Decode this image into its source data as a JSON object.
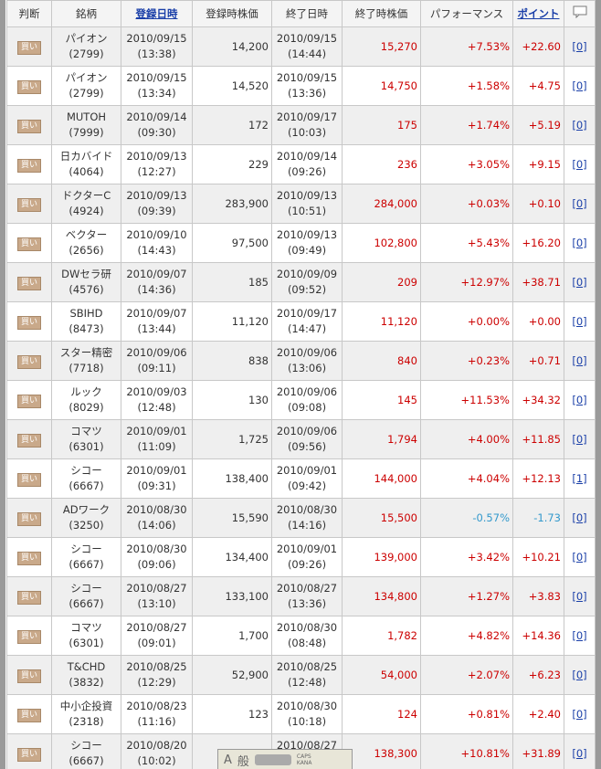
{
  "header": {
    "judge": "判断",
    "name": "銘柄",
    "reg_date": "登録日時",
    "reg_price": "登録時株価",
    "end_date": "終了日時",
    "end_price": "終了時株価",
    "performance": "パフォーマンス",
    "points": "ポイント"
  },
  "rows": [
    {
      "judge": "買い",
      "name": "パイオン",
      "code": "(2799)",
      "reg_date": "2010/09/15",
      "reg_time": "(13:38)",
      "reg_price": "14,200",
      "end_date": "2010/09/15",
      "end_time": "(14:44)",
      "end_price": "15,270",
      "performance": "+7.53%",
      "points": "+22.60",
      "comments": "[0]"
    },
    {
      "judge": "買い",
      "name": "パイオン",
      "code": "(2799)",
      "reg_date": "2010/09/15",
      "reg_time": "(13:34)",
      "reg_price": "14,520",
      "end_date": "2010/09/15",
      "end_time": "(13:36)",
      "end_price": "14,750",
      "performance": "+1.58%",
      "points": "+4.75",
      "comments": "[0]"
    },
    {
      "judge": "買い",
      "name": "MUTOH",
      "code": "(7999)",
      "reg_date": "2010/09/14",
      "reg_time": "(09:30)",
      "reg_price": "172",
      "end_date": "2010/09/17",
      "end_time": "(10:03)",
      "end_price": "175",
      "performance": "+1.74%",
      "points": "+5.19",
      "comments": "[0]"
    },
    {
      "judge": "買い",
      "name": "日カバイド",
      "code": "(4064)",
      "reg_date": "2010/09/13",
      "reg_time": "(12:27)",
      "reg_price": "229",
      "end_date": "2010/09/14",
      "end_time": "(09:26)",
      "end_price": "236",
      "performance": "+3.05%",
      "points": "+9.15",
      "comments": "[0]"
    },
    {
      "judge": "買い",
      "name": "ドクターC",
      "code": "(4924)",
      "reg_date": "2010/09/13",
      "reg_time": "(09:39)",
      "reg_price": "283,900",
      "end_date": "2010/09/13",
      "end_time": "(10:51)",
      "end_price": "284,000",
      "performance": "+0.03%",
      "points": "+0.10",
      "comments": "[0]"
    },
    {
      "judge": "買い",
      "name": "ベクター",
      "code": "(2656)",
      "reg_date": "2010/09/10",
      "reg_time": "(14:43)",
      "reg_price": "97,500",
      "end_date": "2010/09/13",
      "end_time": "(09:49)",
      "end_price": "102,800",
      "performance": "+5.43%",
      "points": "+16.20",
      "comments": "[0]"
    },
    {
      "judge": "買い",
      "name": "DWセラ研",
      "code": "(4576)",
      "reg_date": "2010/09/07",
      "reg_time": "(14:36)",
      "reg_price": "185",
      "end_date": "2010/09/09",
      "end_time": "(09:52)",
      "end_price": "209",
      "performance": "+12.97%",
      "points": "+38.71",
      "comments": "[0]"
    },
    {
      "judge": "買い",
      "name": "SBIHD",
      "code": "(8473)",
      "reg_date": "2010/09/07",
      "reg_time": "(13:44)",
      "reg_price": "11,120",
      "end_date": "2010/09/17",
      "end_time": "(14:47)",
      "end_price": "11,120",
      "performance": "+0.00%",
      "points": "+0.00",
      "comments": "[0]"
    },
    {
      "judge": "買い",
      "name": "スター精密",
      "code": "(7718)",
      "reg_date": "2010/09/06",
      "reg_time": "(09:11)",
      "reg_price": "838",
      "end_date": "2010/09/06",
      "end_time": "(13:06)",
      "end_price": "840",
      "performance": "+0.23%",
      "points": "+0.71",
      "comments": "[0]"
    },
    {
      "judge": "買い",
      "name": "ルック",
      "code": "(8029)",
      "reg_date": "2010/09/03",
      "reg_time": "(12:48)",
      "reg_price": "130",
      "end_date": "2010/09/06",
      "end_time": "(09:08)",
      "end_price": "145",
      "performance": "+11.53%",
      "points": "+34.32",
      "comments": "[0]"
    },
    {
      "judge": "買い",
      "name": "コマツ",
      "code": "(6301)",
      "reg_date": "2010/09/01",
      "reg_time": "(11:09)",
      "reg_price": "1,725",
      "end_date": "2010/09/06",
      "end_time": "(09:56)",
      "end_price": "1,794",
      "performance": "+4.00%",
      "points": "+11.85",
      "comments": "[0]"
    },
    {
      "judge": "買い",
      "name": "シコー",
      "code": "(6667)",
      "reg_date": "2010/09/01",
      "reg_time": "(09:31)",
      "reg_price": "138,400",
      "end_date": "2010/09/01",
      "end_time": "(09:42)",
      "end_price": "144,000",
      "performance": "+4.04%",
      "points": "+12.13",
      "comments": "[1]"
    },
    {
      "judge": "買い",
      "name": "ADワーク",
      "code": "(3250)",
      "reg_date": "2010/08/30",
      "reg_time": "(14:06)",
      "reg_price": "15,590",
      "end_date": "2010/08/30",
      "end_time": "(14:16)",
      "end_price": "15,500",
      "performance": "-0.57%",
      "points": "-1.73",
      "comments": "[0]"
    },
    {
      "judge": "買い",
      "name": "シコー",
      "code": "(6667)",
      "reg_date": "2010/08/30",
      "reg_time": "(09:06)",
      "reg_price": "134,400",
      "end_date": "2010/09/01",
      "end_time": "(09:26)",
      "end_price": "139,000",
      "performance": "+3.42%",
      "points": "+10.21",
      "comments": "[0]"
    },
    {
      "judge": "買い",
      "name": "シコー",
      "code": "(6667)",
      "reg_date": "2010/08/27",
      "reg_time": "(13:10)",
      "reg_price": "133,100",
      "end_date": "2010/08/27",
      "end_time": "(13:36)",
      "end_price": "134,800",
      "performance": "+1.27%",
      "points": "+3.83",
      "comments": "[0]"
    },
    {
      "judge": "買い",
      "name": "コマツ",
      "code": "(6301)",
      "reg_date": "2010/08/27",
      "reg_time": "(09:01)",
      "reg_price": "1,700",
      "end_date": "2010/08/30",
      "end_time": "(08:48)",
      "end_price": "1,782",
      "performance": "+4.82%",
      "points": "+14.36",
      "comments": "[0]"
    },
    {
      "judge": "買い",
      "name": "T&CHD",
      "code": "(3832)",
      "reg_date": "2010/08/25",
      "reg_time": "(12:29)",
      "reg_price": "52,900",
      "end_date": "2010/08/25",
      "end_time": "(12:48)",
      "end_price": "54,000",
      "performance": "+2.07%",
      "points": "+6.23",
      "comments": "[0]"
    },
    {
      "judge": "買い",
      "name": "中小企投資",
      "code": "(2318)",
      "reg_date": "2010/08/23",
      "reg_time": "(11:16)",
      "reg_price": "123",
      "end_date": "2010/08/30",
      "end_time": "(10:18)",
      "end_price": "124",
      "performance": "+0.81%",
      "points": "+2.40",
      "comments": "[0]"
    },
    {
      "judge": "買い",
      "name": "シコー",
      "code": "(6667)",
      "reg_date": "2010/08/20",
      "reg_time": "(10:02)",
      "reg_price": null,
      "end_date": "2010/08/27",
      "end_time": null,
      "end_price": "138,300",
      "performance": "+10.81%",
      "points": "+31.89",
      "comments": "[0]"
    }
  ],
  "toolbar": {
    "mode": "A",
    "kanji": "般",
    "caps": "CAPS",
    "kana": "KANA"
  }
}
